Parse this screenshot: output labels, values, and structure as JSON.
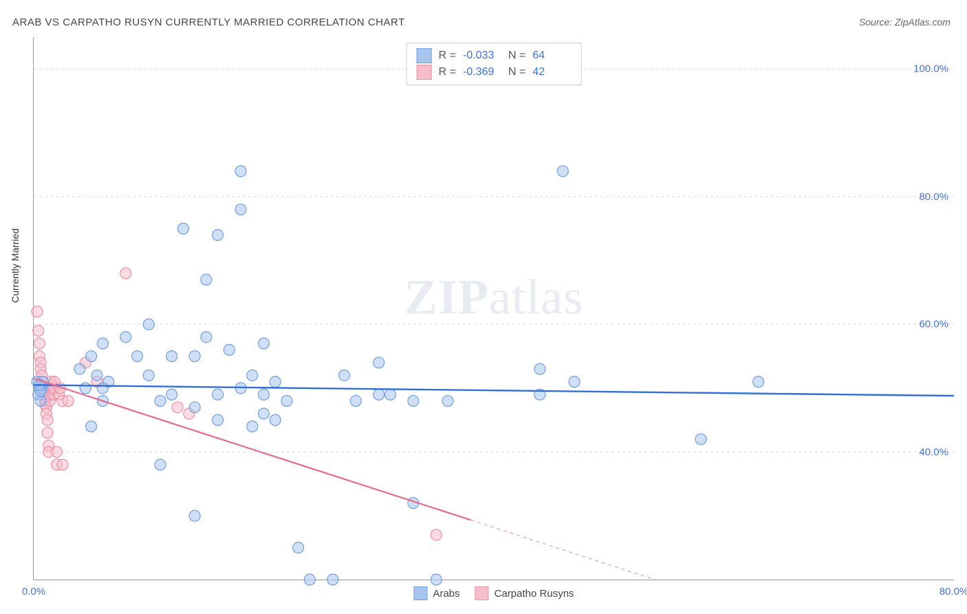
{
  "title": "ARAB VS CARPATHO RUSYN CURRENTLY MARRIED CORRELATION CHART",
  "source": "Source: ZipAtlas.com",
  "ylabel": "Currently Married",
  "watermark_a": "ZIP",
  "watermark_b": "atlas",
  "chart": {
    "type": "scatter",
    "xlim": [
      0,
      80
    ],
    "ylim": [
      20,
      105
    ],
    "background_color": "#ffffff",
    "grid_color": "#d8d8d8",
    "axis_color": "#999999",
    "tick_label_color": "#4472d8",
    "yticks": [
      40,
      60,
      80,
      100
    ],
    "ytick_labels": [
      "40.0%",
      "60.0%",
      "80.0%",
      "100.0%"
    ],
    "xticks": [
      0,
      80
    ],
    "xtick_labels": [
      "0.0%",
      "80.0%"
    ],
    "marker_radius": 8,
    "marker_opacity": 0.55,
    "series": [
      {
        "name": "Arabs",
        "fill_color": "#a7c5ed",
        "stroke_color": "#6f9fe0",
        "line_color": "#2f6fd6",
        "R": "-0.033",
        "N": "64",
        "trend": {
          "x1": 0,
          "y1": 50.5,
          "x2": 80,
          "y2": 48.8,
          "dashed_from_x": null
        },
        "points": [
          [
            0.3,
            51
          ],
          [
            0.4,
            49
          ],
          [
            0.5,
            50
          ],
          [
            0.6,
            48
          ],
          [
            0.7,
            50
          ],
          [
            0.8,
            51
          ],
          [
            0.6,
            49.5
          ],
          [
            0.5,
            50.5
          ],
          [
            4,
            53
          ],
          [
            4.5,
            50
          ],
          [
            5,
            55
          ],
          [
            5.5,
            52
          ],
          [
            6,
            57
          ],
          [
            6.5,
            51
          ],
          [
            5,
            44
          ],
          [
            6,
            48
          ],
          [
            6,
            50
          ],
          [
            8,
            58
          ],
          [
            9,
            55
          ],
          [
            10,
            60
          ],
          [
            10,
            52
          ],
          [
            11,
            48
          ],
          [
            11,
            38
          ],
          [
            12,
            55
          ],
          [
            12,
            49
          ],
          [
            13,
            75
          ],
          [
            14,
            55
          ],
          [
            14,
            47
          ],
          [
            14,
            30
          ],
          [
            15,
            67
          ],
          [
            15,
            58
          ],
          [
            16,
            74
          ],
          [
            16,
            49
          ],
          [
            16,
            45
          ],
          [
            17,
            56
          ],
          [
            18,
            50
          ],
          [
            18,
            84
          ],
          [
            18,
            78
          ],
          [
            19,
            52
          ],
          [
            19,
            44
          ],
          [
            20,
            57
          ],
          [
            20,
            49
          ],
          [
            20,
            46
          ],
          [
            21,
            51
          ],
          [
            21,
            45
          ],
          [
            22,
            48
          ],
          [
            23,
            25
          ],
          [
            24,
            20
          ],
          [
            26,
            20
          ],
          [
            27,
            52
          ],
          [
            28,
            48
          ],
          [
            30,
            54
          ],
          [
            30,
            49
          ],
          [
            31,
            49
          ],
          [
            33,
            48
          ],
          [
            33,
            32
          ],
          [
            35,
            20
          ],
          [
            36,
            48
          ],
          [
            44,
            53
          ],
          [
            44,
            49
          ],
          [
            46,
            84
          ],
          [
            47,
            51
          ],
          [
            58,
            42
          ],
          [
            63,
            51
          ]
        ]
      },
      {
        "name": "Carpatho Rusyns",
        "fill_color": "#f6bdcb",
        "stroke_color": "#eb90a6",
        "line_color": "#e76a8e",
        "R": "-0.369",
        "N": "42",
        "trend": {
          "x1": 0,
          "y1": 51.5,
          "x2": 54,
          "y2": 20,
          "dashed_from_x": 38
        },
        "points": [
          [
            0.3,
            62
          ],
          [
            0.4,
            59
          ],
          [
            0.5,
            57
          ],
          [
            0.5,
            55
          ],
          [
            0.6,
            54
          ],
          [
            0.6,
            53
          ],
          [
            0.7,
            52
          ],
          [
            0.7,
            51
          ],
          [
            0.8,
            50
          ],
          [
            0.8,
            49.5
          ],
          [
            0.9,
            49
          ],
          [
            0.9,
            48.5
          ],
          [
            1.0,
            48
          ],
          [
            1.0,
            47.5
          ],
          [
            1.1,
            47
          ],
          [
            1.1,
            46
          ],
          [
            1.2,
            45
          ],
          [
            1.2,
            43
          ],
          [
            1.3,
            41
          ],
          [
            1.3,
            40
          ],
          [
            1.4,
            48
          ],
          [
            1.4,
            49
          ],
          [
            1.5,
            50
          ],
          [
            1.5,
            51
          ],
          [
            1.6,
            50.5
          ],
          [
            1.6,
            49.8
          ],
          [
            1.7,
            49
          ],
          [
            1.8,
            50
          ],
          [
            1.8,
            51
          ],
          [
            2.0,
            38
          ],
          [
            2.0,
            40
          ],
          [
            2.2,
            49
          ],
          [
            2.3,
            50
          ],
          [
            2.5,
            48
          ],
          [
            2.5,
            38
          ],
          [
            3.0,
            48
          ],
          [
            4.5,
            54
          ],
          [
            5.5,
            51
          ],
          [
            8.0,
            68
          ],
          [
            12.5,
            47
          ],
          [
            13.5,
            46
          ],
          [
            35,
            27
          ]
        ]
      }
    ]
  },
  "legend_bottom": [
    {
      "label": "Arabs",
      "fill": "#a7c5ed",
      "stroke": "#6f9fe0"
    },
    {
      "label": "Carpatho Rusyns",
      "fill": "#f6bdcb",
      "stroke": "#eb90a6"
    }
  ]
}
